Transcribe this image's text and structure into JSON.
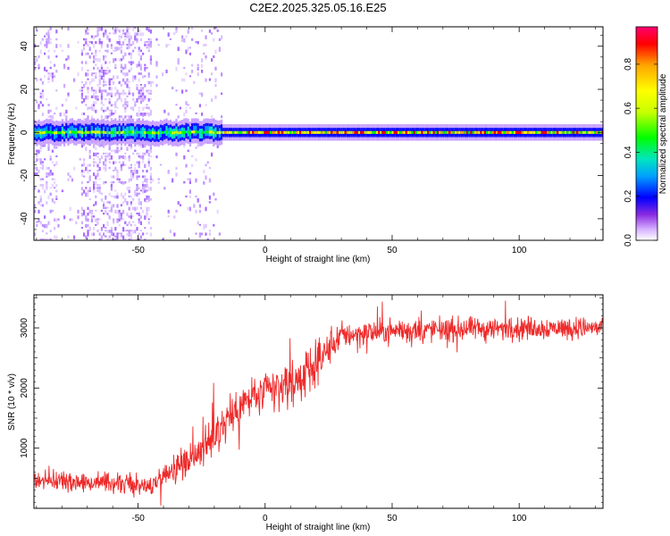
{
  "title": "C2E2.2025.325.05.16.E25",
  "chart_data": [
    {
      "type": "heatmap",
      "xlabel": "Height of straight line (km)",
      "ylabel": "Frequency (Hz)",
      "colorbar_label": "Normalized spectral amplitude",
      "xlim": [
        -91,
        133
      ],
      "ylim": [
        -50,
        49
      ],
      "xticks": [
        -50,
        0,
        50,
        100
      ],
      "yticks": [
        -40,
        -20,
        0,
        20,
        40
      ],
      "ytick_labels": [
        "-40",
        "-20",
        "0",
        "20",
        "40"
      ],
      "colorbar_range": [
        0.0,
        0.97
      ],
      "colorbar_ticks": [
        0.0,
        0.2,
        0.4,
        0.6,
        0.8
      ],
      "colorbar_tick_labels": [
        "0.0",
        "0.2",
        "0.4",
        "0.6",
        "0.8"
      ],
      "colormap": [
        "#ffffff",
        "#a855ff",
        "#3a00ff",
        "#0000ff",
        "#00a0ff",
        "#00e5c0",
        "#00ff00",
        "#c8ff00",
        "#ffff00",
        "#ffa500",
        "#ff0000",
        "#ff0070"
      ],
      "description": [
        {
          "x_range": [
            -91,
            -17
          ],
          "dominant_frequency_hz": 0,
          "band_halfwidth_hz": 5,
          "peak_amplitude": 0.6,
          "noise": "broadband faint purple speckle"
        },
        {
          "x_range": [
            -17,
            133
          ],
          "dominant_frequency_hz": 0,
          "band_halfwidth_hz": 3,
          "peak_amplitude": 0.95,
          "noise": "low"
        }
      ]
    },
    {
      "type": "line",
      "xlabel": "Height of straight line (km)",
      "ylabel": "SNR (10 * v/v)",
      "xlim": [
        -91,
        133
      ],
      "ylim": [
        0,
        3550
      ],
      "xticks": [
        -50,
        0,
        50,
        100
      ],
      "yticks": [
        1000,
        2000,
        3000
      ],
      "color": "#ee2a2a",
      "trend_knots": [
        {
          "x": -91,
          "base": 480,
          "amp": 250
        },
        {
          "x": -60,
          "base": 420,
          "amp": 250
        },
        {
          "x": -45,
          "base": 360,
          "amp": 230
        },
        {
          "x": -40,
          "base": 560,
          "amp": 300
        },
        {
          "x": -30,
          "base": 820,
          "amp": 420
        },
        {
          "x": -22,
          "base": 1080,
          "amp": 520
        },
        {
          "x": -15,
          "base": 1480,
          "amp": 560
        },
        {
          "x": -5,
          "base": 1850,
          "amp": 560
        },
        {
          "x": 5,
          "base": 1980,
          "amp": 560
        },
        {
          "x": 15,
          "base": 2180,
          "amp": 560
        },
        {
          "x": 22,
          "base": 2500,
          "amp": 480
        },
        {
          "x": 30,
          "base": 2880,
          "amp": 330
        },
        {
          "x": 50,
          "base": 2950,
          "amp": 300
        },
        {
          "x": 100,
          "base": 3000,
          "amp": 280
        },
        {
          "x": 133,
          "base": 3000,
          "amp": 260
        }
      ]
    }
  ]
}
